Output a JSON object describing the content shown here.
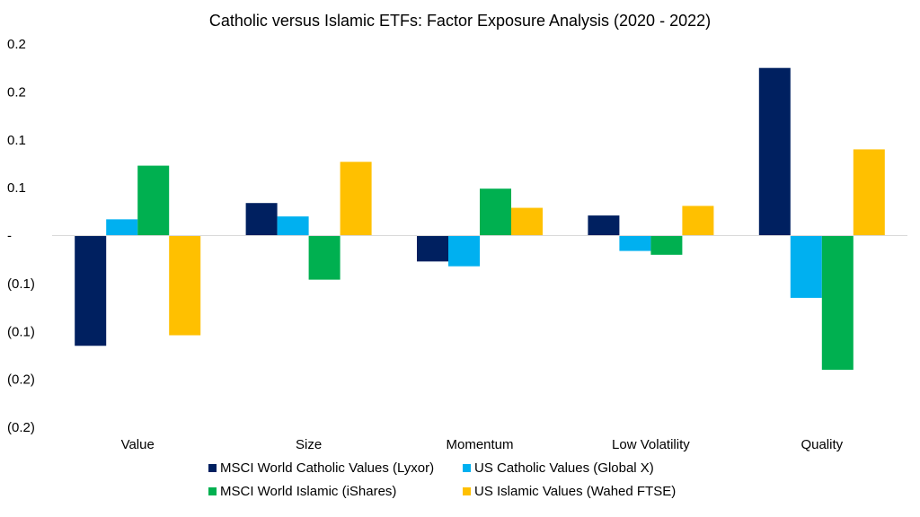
{
  "chart_data": {
    "type": "bar",
    "title": "Catholic versus Islamic ETFs: Factor Exposure Analysis (2020 - 2022)",
    "xlabel": "",
    "ylabel": "",
    "ylim": [
      -0.2,
      0.2
    ],
    "yticks": [
      0.2,
      0.15,
      0.1,
      0.05,
      0,
      -0.05,
      -0.1,
      -0.15,
      -0.2
    ],
    "ytick_labels": [
      "0.2",
      "0.2",
      "0.1",
      "0.1",
      "-",
      "(0.1)",
      "(0.1)",
      "(0.2)",
      "(0.2)"
    ],
    "grid": false,
    "legend_position": "bottom",
    "categories": [
      "Value",
      "Size",
      "Momentum",
      "Low Volatility",
      "Quality"
    ],
    "series": [
      {
        "name": "MSCI World Catholic Values (Lyxor)",
        "color": "#002060",
        "values": [
          -0.115,
          0.034,
          -0.027,
          0.021,
          0.175
        ]
      },
      {
        "name": "US Catholic Values (Global X)",
        "color": "#00B0F0",
        "values": [
          0.017,
          0.02,
          -0.032,
          -0.016,
          -0.065
        ]
      },
      {
        "name": "MSCI World Islamic (iShares)",
        "color": "#00B050",
        "values": [
          0.073,
          -0.046,
          0.049,
          -0.02,
          -0.14
        ]
      },
      {
        "name": "US Islamic Values (Wahed FTSE)",
        "color": "#FFC000",
        "values": [
          -0.104,
          0.077,
          0.029,
          0.031,
          0.09
        ]
      }
    ]
  }
}
